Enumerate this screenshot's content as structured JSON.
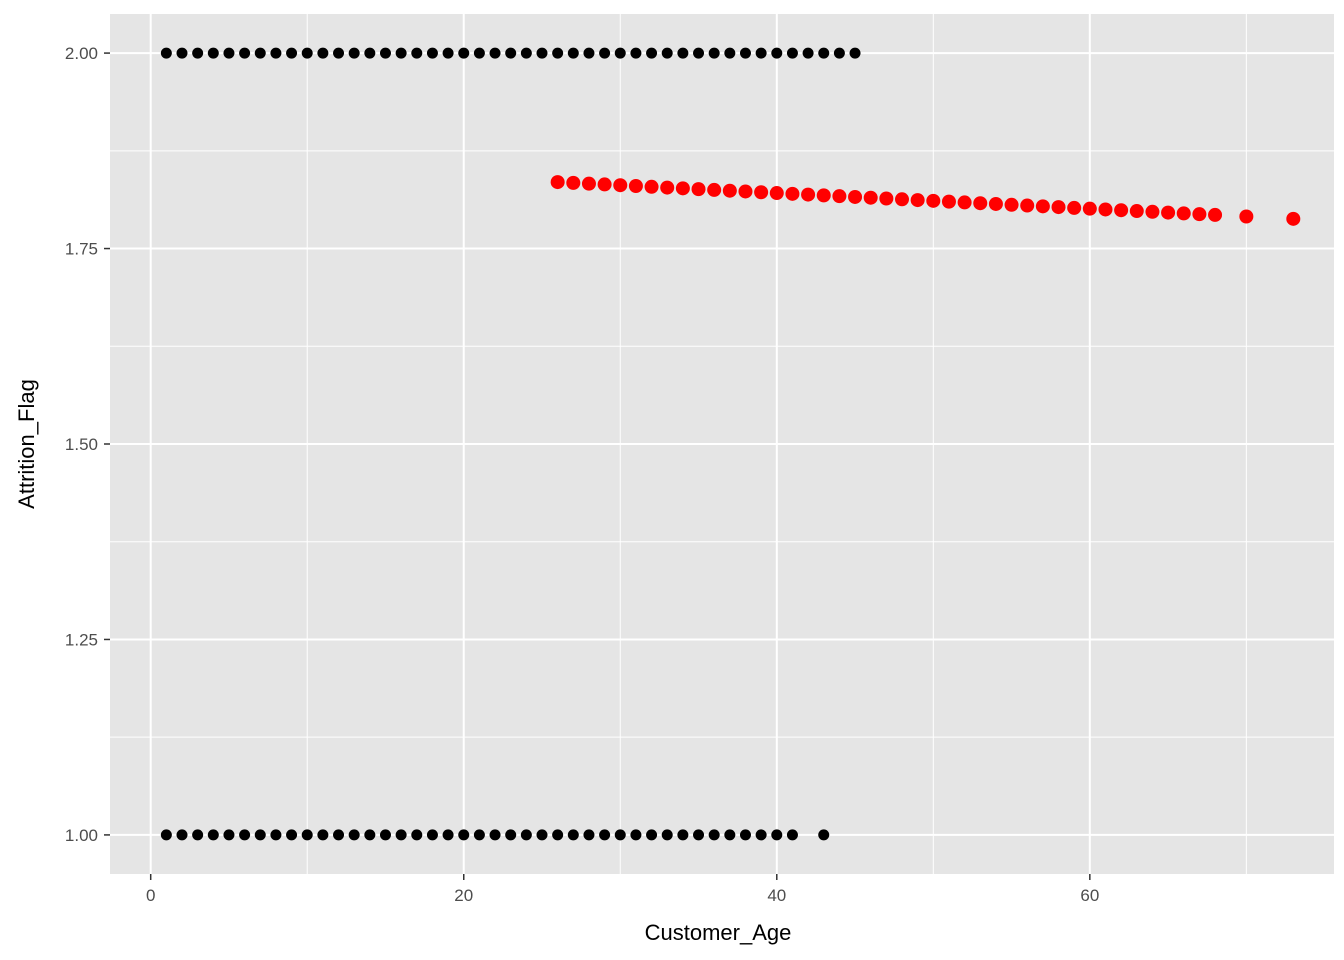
{
  "chart_data": {
    "type": "scatter",
    "title": "",
    "xlabel": "Customer_Age",
    "ylabel": "Attrition_Flag",
    "xlim": [
      -2.6,
      75.6
    ],
    "ylim": [
      0.95,
      2.05
    ],
    "x_ticks": [
      0,
      20,
      40,
      60
    ],
    "x_tick_labels": [
      "0",
      "20",
      "40",
      "60"
    ],
    "y_ticks": [
      1.0,
      1.25,
      1.5,
      1.75,
      2.0
    ],
    "y_tick_labels": [
      "1.00",
      "1.25",
      "1.50",
      "1.75",
      "2.00"
    ],
    "grid": true,
    "panel_background": "#e5e5e5",
    "grid_color": "#ffffff",
    "series": [
      {
        "color": "#000000",
        "marker_size": "small",
        "points": [
          [
            1,
            2
          ],
          [
            2,
            2
          ],
          [
            3,
            2
          ],
          [
            4,
            2
          ],
          [
            5,
            2
          ],
          [
            6,
            2
          ],
          [
            7,
            2
          ],
          [
            8,
            2
          ],
          [
            9,
            2
          ],
          [
            10,
            2
          ],
          [
            11,
            2
          ],
          [
            12,
            2
          ],
          [
            13,
            2
          ],
          [
            14,
            2
          ],
          [
            15,
            2
          ],
          [
            16,
            2
          ],
          [
            17,
            2
          ],
          [
            18,
            2
          ],
          [
            19,
            2
          ],
          [
            20,
            2
          ],
          [
            21,
            2
          ],
          [
            22,
            2
          ],
          [
            23,
            2
          ],
          [
            24,
            2
          ],
          [
            25,
            2
          ],
          [
            26,
            2
          ],
          [
            27,
            2
          ],
          [
            28,
            2
          ],
          [
            29,
            2
          ],
          [
            30,
            2
          ],
          [
            31,
            2
          ],
          [
            32,
            2
          ],
          [
            33,
            2
          ],
          [
            34,
            2
          ],
          [
            35,
            2
          ],
          [
            36,
            2
          ],
          [
            37,
            2
          ],
          [
            38,
            2
          ],
          [
            39,
            2
          ],
          [
            40,
            2
          ],
          [
            41,
            2
          ],
          [
            42,
            2
          ],
          [
            43,
            2
          ],
          [
            44,
            2
          ],
          [
            45,
            2
          ],
          [
            1,
            1
          ],
          [
            2,
            1
          ],
          [
            3,
            1
          ],
          [
            4,
            1
          ],
          [
            5,
            1
          ],
          [
            6,
            1
          ],
          [
            7,
            1
          ],
          [
            8,
            1
          ],
          [
            9,
            1
          ],
          [
            10,
            1
          ],
          [
            11,
            1
          ],
          [
            12,
            1
          ],
          [
            13,
            1
          ],
          [
            14,
            1
          ],
          [
            15,
            1
          ],
          [
            16,
            1
          ],
          [
            17,
            1
          ],
          [
            18,
            1
          ],
          [
            19,
            1
          ],
          [
            20,
            1
          ],
          [
            21,
            1
          ],
          [
            22,
            1
          ],
          [
            23,
            1
          ],
          [
            24,
            1
          ],
          [
            25,
            1
          ],
          [
            26,
            1
          ],
          [
            27,
            1
          ],
          [
            28,
            1
          ],
          [
            29,
            1
          ],
          [
            30,
            1
          ],
          [
            31,
            1
          ],
          [
            32,
            1
          ],
          [
            33,
            1
          ],
          [
            34,
            1
          ],
          [
            35,
            1
          ],
          [
            36,
            1
          ],
          [
            37,
            1
          ],
          [
            38,
            1
          ],
          [
            39,
            1
          ],
          [
            40,
            1
          ],
          [
            41,
            1
          ],
          [
            43,
            1
          ]
        ]
      },
      {
        "color": "#ff0000",
        "marker_size": "large",
        "points": [
          [
            26,
            1.835
          ],
          [
            27,
            1.834
          ],
          [
            28,
            1.833
          ],
          [
            29,
            1.832
          ],
          [
            30,
            1.831
          ],
          [
            31,
            1.83
          ],
          [
            32,
            1.829
          ],
          [
            33,
            1.828
          ],
          [
            34,
            1.827
          ],
          [
            35,
            1.826
          ],
          [
            36,
            1.825
          ],
          [
            37,
            1.824
          ],
          [
            38,
            1.823
          ],
          [
            39,
            1.822
          ],
          [
            40,
            1.821
          ],
          [
            41,
            1.82
          ],
          [
            42,
            1.819
          ],
          [
            43,
            1.818
          ],
          [
            44,
            1.817
          ],
          [
            45,
            1.816
          ],
          [
            46,
            1.815
          ],
          [
            47,
            1.814
          ],
          [
            48,
            1.813
          ],
          [
            49,
            1.812
          ],
          [
            50,
            1.811
          ],
          [
            51,
            1.81
          ],
          [
            52,
            1.809
          ],
          [
            53,
            1.808
          ],
          [
            54,
            1.807
          ],
          [
            55,
            1.806
          ],
          [
            56,
            1.805
          ],
          [
            57,
            1.804
          ],
          [
            58,
            1.803
          ],
          [
            59,
            1.802
          ],
          [
            60,
            1.801
          ],
          [
            61,
            1.8
          ],
          [
            62,
            1.799
          ],
          [
            63,
            1.798
          ],
          [
            64,
            1.797
          ],
          [
            65,
            1.796
          ],
          [
            66,
            1.795
          ],
          [
            67,
            1.794
          ],
          [
            68,
            1.793
          ],
          [
            70,
            1.791
          ],
          [
            73,
            1.788
          ]
        ]
      }
    ]
  }
}
